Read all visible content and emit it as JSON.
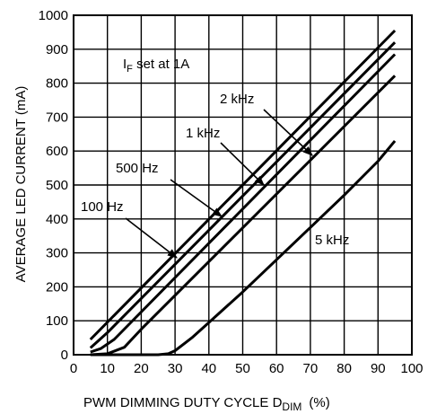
{
  "chart_data": {
    "type": "line",
    "title": "",
    "xlabel": "PWM DIMMING DUTY CYCLE D",
    "xlabel_sub": "DIM",
    "xlabel_unit": "(%)",
    "ylabel": "AVERAGE LED CURRENT (mA)",
    "xlim": [
      0,
      100
    ],
    "ylim": [
      0,
      1000
    ],
    "x_ticks": [
      0,
      10,
      20,
      30,
      40,
      50,
      60,
      70,
      80,
      90,
      100
    ],
    "y_ticks": [
      0,
      100,
      200,
      300,
      400,
      500,
      600,
      700,
      800,
      900,
      1000
    ],
    "grid": true,
    "annotation": {
      "prefix": "I",
      "sub": "F",
      "suffix": " set at 1A"
    },
    "series": [
      {
        "name": "100 Hz",
        "x": [
          5,
          95
        ],
        "y": [
          45,
          955
        ]
      },
      {
        "name": "500 Hz",
        "x": [
          5,
          10,
          95
        ],
        "y": [
          20,
          65,
          920
        ]
      },
      {
        "name": "1 kHz",
        "x": [
          5,
          8,
          12,
          95
        ],
        "y": [
          8,
          18,
          45,
          885
        ]
      },
      {
        "name": "2 kHz",
        "x": [
          5,
          10,
          15,
          20,
          95
        ],
        "y": [
          0,
          3,
          22,
          75,
          822
        ]
      },
      {
        "name": "5 kHz",
        "x": [
          5,
          25,
          28,
          30,
          35,
          40,
          50,
          60,
          70,
          80,
          90,
          95
        ],
        "y": [
          0,
          0,
          3,
          12,
          50,
          95,
          185,
          280,
          375,
          470,
          570,
          630
        ]
      }
    ]
  }
}
